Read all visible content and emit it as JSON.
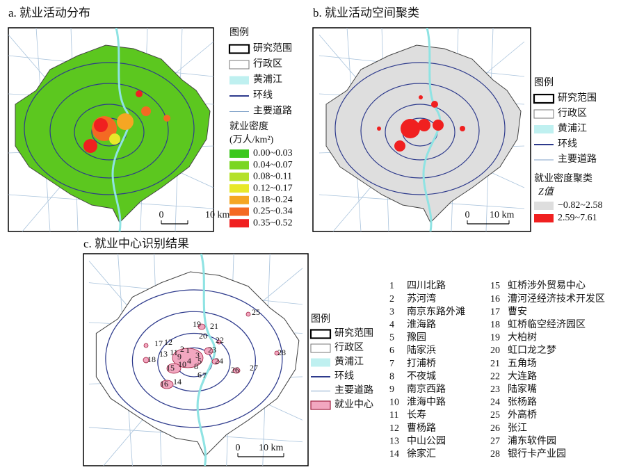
{
  "panels": [
    {
      "title": "a. 就业活动分布",
      "legend": {
        "title": "图例",
        "items": [
          "研究范围",
          "行政区",
          "黄浦江",
          "环线",
          "主要道路"
        ],
        "class_title": "就业密度",
        "class_unit": "(万人/km²)",
        "classes": [
          "0.00~0.03",
          "0.04~0.07",
          "0.08~0.11",
          "0.12~0.17",
          "0.18~0.24",
          "0.25~0.34",
          "0.35~0.52"
        ]
      },
      "scale": {
        "zero": "0",
        "label": "10 km"
      }
    },
    {
      "title": "b. 就业活动空间聚类",
      "legend": {
        "title": "图例",
        "items": [
          "研究范围",
          "行政区",
          "黄浦江",
          "环线",
          "主要道路"
        ],
        "class_title": "就业密度聚类",
        "class_unit": "Z值",
        "classes": [
          "−0.82~2.58",
          "2.59~7.61"
        ]
      },
      "scale": {
        "zero": "0",
        "label": "10 km"
      }
    },
    {
      "title": "c. 就业中心识别结果",
      "legend": {
        "title": "图例",
        "items": [
          "研究范围",
          "行政区",
          "黄浦江",
          "环线",
          "主要道路",
          "就业中心"
        ]
      },
      "scale": {
        "zero": "0",
        "label": "10 km"
      }
    }
  ],
  "centers": [
    {
      "id": "1",
      "name": "四川北路"
    },
    {
      "id": "2",
      "name": "苏河湾"
    },
    {
      "id": "3",
      "name": "南京东路外滩"
    },
    {
      "id": "4",
      "name": "淮海路"
    },
    {
      "id": "5",
      "name": "豫园"
    },
    {
      "id": "6",
      "name": "陆家浜"
    },
    {
      "id": "7",
      "name": "打浦桥"
    },
    {
      "id": "8",
      "name": "不夜城"
    },
    {
      "id": "9",
      "name": "南京西路"
    },
    {
      "id": "10",
      "name": "淮海中路"
    },
    {
      "id": "11",
      "name": "长寿"
    },
    {
      "id": "12",
      "name": "曹杨路"
    },
    {
      "id": "13",
      "name": "中山公园"
    },
    {
      "id": "14",
      "name": "徐家汇"
    },
    {
      "id": "15",
      "name": "虹桥涉外贸易中心"
    },
    {
      "id": "16",
      "name": "漕河泾经济技术开发区"
    },
    {
      "id": "17",
      "name": "曹安"
    },
    {
      "id": "18",
      "name": "虹桥临空经济园区"
    },
    {
      "id": "19",
      "name": "大柏树"
    },
    {
      "id": "20",
      "name": "虹口龙之梦"
    },
    {
      "id": "21",
      "name": "五角场"
    },
    {
      "id": "22",
      "name": "大连路"
    },
    {
      "id": "23",
      "name": "陆家嘴"
    },
    {
      "id": "24",
      "name": "张杨路"
    },
    {
      "id": "25",
      "name": "外高桥"
    },
    {
      "id": "26",
      "name": "张江"
    },
    {
      "id": "27",
      "name": "浦东软件园"
    },
    {
      "id": "28",
      "name": "银行卡产业园"
    }
  ]
}
